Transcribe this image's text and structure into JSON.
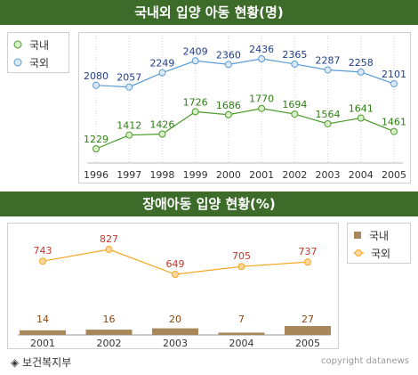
{
  "chart_data": [
    {
      "type": "line",
      "title": "국내외 입양 아동 현황(명)",
      "categories": [
        "1996",
        "1997",
        "1998",
        "1999",
        "2000",
        "2001",
        "2002",
        "2003",
        "2004",
        "2005"
      ],
      "series": [
        {
          "name": "국내",
          "color": "#4a9a2a",
          "values": [
            1229,
            1412,
            1426,
            1726,
            1686,
            1770,
            1694,
            1564,
            1641,
            1461
          ]
        },
        {
          "name": "국외",
          "color": "#5b9bd5",
          "values": [
            2080,
            2057,
            2249,
            2409,
            2360,
            2436,
            2365,
            2287,
            2258,
            2101
          ]
        }
      ],
      "legend_placement": "left"
    },
    {
      "type": "bar+line",
      "title": "장애아동 입양 현황(%)",
      "categories": [
        "2001",
        "2002",
        "2003",
        "2004",
        "2005"
      ],
      "series": [
        {
          "name": "국내",
          "kind": "bar",
          "color": "#a8875a",
          "values": [
            14,
            16,
            20,
            7,
            27
          ]
        },
        {
          "name": "국외",
          "kind": "line",
          "color": "#f5a623",
          "values": [
            743,
            827,
            649,
            705,
            737
          ]
        }
      ],
      "legend_placement": "right"
    }
  ],
  "footer": {
    "source": "◈ 보건복지부",
    "copyright": "copyright datanews"
  }
}
